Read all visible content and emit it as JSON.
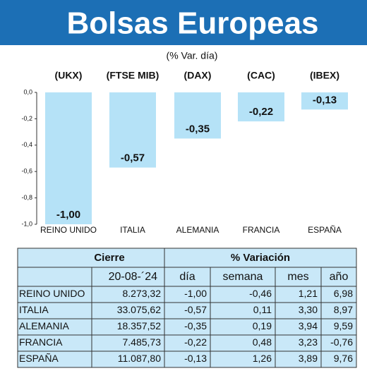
{
  "header": {
    "title": "Bolsas Europeas"
  },
  "chart_data": {
    "type": "bar",
    "subtitle": "(% Var. día)",
    "index_codes": [
      "(UKX)",
      "(FTSE MIB)",
      "(DAX)",
      "(CAC)",
      "(IBEX)"
    ],
    "categories": [
      "REINO UNIDO",
      "ITALIA",
      "ALEMANIA",
      "FRANCIA",
      "ESPAÑA"
    ],
    "values": [
      -1.0,
      -0.57,
      -0.35,
      -0.22,
      -0.13
    ],
    "value_labels": [
      "-1,00",
      "-0,57",
      "-0,35",
      "-0,22",
      "-0,13"
    ],
    "color": "#b5e2f7",
    "ylim": [
      -1.0,
      0.0
    ],
    "yticks": [
      {
        "value": 0.0,
        "label": "0,0"
      },
      {
        "value": -0.2,
        "label": "-0,2"
      },
      {
        "value": -0.4,
        "label": "-0,4"
      },
      {
        "value": -0.6,
        "label": "-0,6"
      },
      {
        "value": -0.8,
        "label": "-0,8"
      },
      {
        "value": -1.0,
        "label": "-1,0"
      }
    ]
  },
  "table": {
    "group_headers": [
      "Cierre",
      "% Variación"
    ],
    "columns": [
      "20-08-´24",
      "día",
      "semana",
      "mes",
      "año"
    ],
    "rows": [
      [
        "REINO UNIDO",
        "8.273,32",
        "-1,00",
        "-0,46",
        "1,21",
        "6,98"
      ],
      [
        "ITALIA",
        "33.075,62",
        "-0,57",
        "0,11",
        "3,30",
        "8,97"
      ],
      [
        "ALEMANIA",
        "18.357,52",
        "-0,35",
        "0,19",
        "3,94",
        "9,59"
      ],
      [
        "FRANCIA",
        "7.485,73",
        "-0,22",
        "0,48",
        "3,23",
        "-0,76"
      ],
      [
        "ESPAÑA",
        "11.087,80",
        "-0,13",
        "1,26",
        "3,89",
        "9,76"
      ]
    ]
  }
}
